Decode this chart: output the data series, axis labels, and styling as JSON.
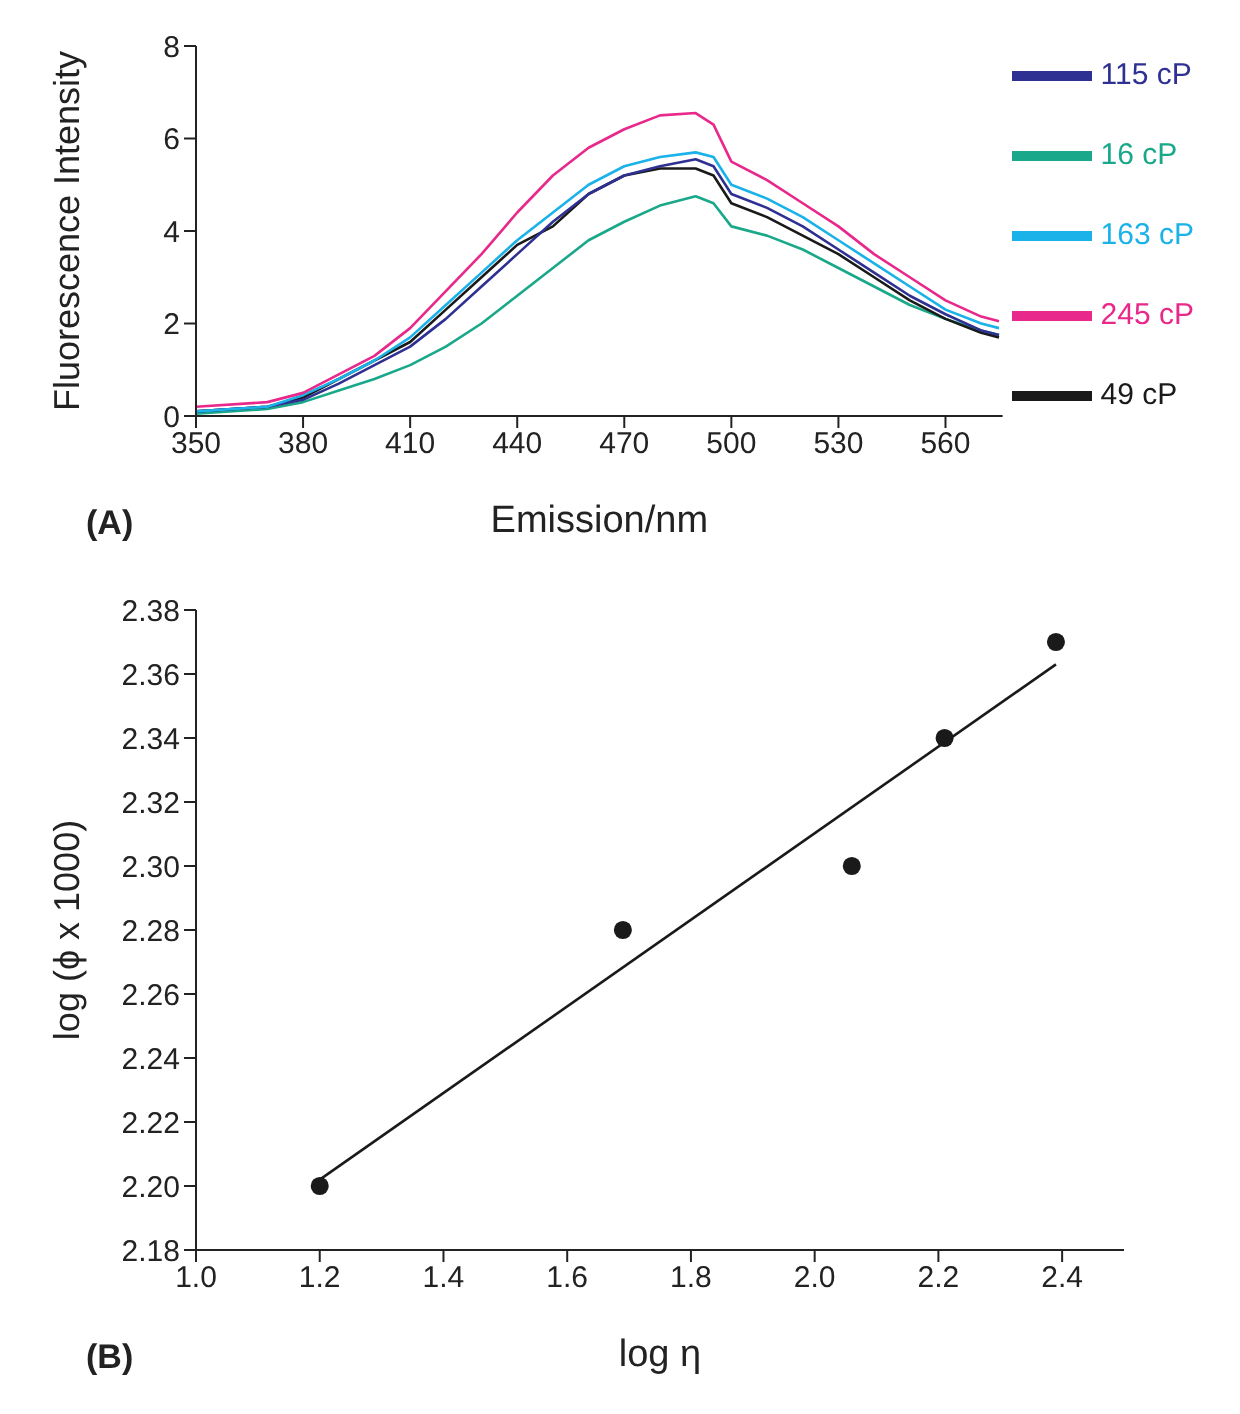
{
  "chart_data": [
    {
      "type": "line",
      "xlabel": "Emission/nm",
      "ylabel": "Fluorescence Intensity",
      "annotations": [
        "(A)"
      ],
      "x": [
        350,
        370,
        380,
        390,
        400,
        410,
        420,
        430,
        440,
        450,
        460,
        470,
        480,
        490,
        495,
        500,
        510,
        520,
        530,
        540,
        550,
        560,
        570,
        575
      ],
      "xlim": [
        350,
        576
      ],
      "xticks": [
        350,
        380,
        410,
        440,
        470,
        500,
        530,
        560
      ],
      "ylim": [
        0,
        8
      ],
      "yticks": [
        0,
        2,
        4,
        6,
        8
      ],
      "grid": false,
      "legend": "right",
      "marker": "none",
      "line_style": "solid",
      "series": [
        {
          "name": "16 cP",
          "color": "#1aa88a",
          "values": [
            0.05,
            0.15,
            0.3,
            0.55,
            0.8,
            1.1,
            1.5,
            2.0,
            2.6,
            3.2,
            3.8,
            4.2,
            4.55,
            4.75,
            4.6,
            4.1,
            3.9,
            3.6,
            3.2,
            2.8,
            2.4,
            2.1,
            1.85,
            1.75
          ]
        },
        {
          "name": "49 cP",
          "color": "#1a1a1a",
          "values": [
            0.1,
            0.2,
            0.4,
            0.8,
            1.2,
            1.6,
            2.3,
            3.0,
            3.7,
            4.1,
            4.8,
            5.2,
            5.35,
            5.35,
            5.2,
            4.6,
            4.3,
            3.9,
            3.5,
            3.0,
            2.5,
            2.1,
            1.8,
            1.7
          ]
        },
        {
          "name": "115 cP",
          "color": "#2e3192",
          "values": [
            0.1,
            0.2,
            0.35,
            0.7,
            1.1,
            1.5,
            2.1,
            2.8,
            3.5,
            4.2,
            4.8,
            5.2,
            5.4,
            5.55,
            5.4,
            4.8,
            4.5,
            4.1,
            3.6,
            3.1,
            2.6,
            2.2,
            1.85,
            1.75
          ]
        },
        {
          "name": "163 cP",
          "color": "#1ab2e8",
          "values": [
            0.1,
            0.2,
            0.45,
            0.8,
            1.2,
            1.7,
            2.4,
            3.1,
            3.8,
            4.4,
            5.0,
            5.4,
            5.6,
            5.7,
            5.6,
            5.0,
            4.7,
            4.3,
            3.8,
            3.3,
            2.8,
            2.3,
            2.0,
            1.9
          ]
        },
        {
          "name": "245 cP",
          "color": "#e8288a",
          "values": [
            0.2,
            0.3,
            0.5,
            0.9,
            1.3,
            1.9,
            2.7,
            3.5,
            4.4,
            5.2,
            5.8,
            6.2,
            6.5,
            6.55,
            6.3,
            5.5,
            5.1,
            4.6,
            4.1,
            3.5,
            3.0,
            2.5,
            2.15,
            2.05
          ]
        }
      ]
    },
    {
      "type": "scatter",
      "xlabel": "log η",
      "ylabel": "log (ϕ x 1000)",
      "annotations": [
        "(B)"
      ],
      "xlim": [
        1.0,
        2.5
      ],
      "xticks": [
        {
          "value": 1.0,
          "label": "1.0"
        },
        1.2,
        1.4,
        1.6,
        1.8,
        {
          "value": 2.0,
          "label": "2.0"
        },
        2.2,
        2.4
      ],
      "ylim": [
        2.18,
        2.38
      ],
      "yticks": [
        2.18,
        {
          "value": 2.2,
          "label": "2.20"
        },
        2.22,
        2.24,
        2.26,
        2.28,
        {
          "value": 2.3,
          "label": "2.30"
        },
        2.32,
        2.34,
        2.36,
        2.38
      ],
      "grid": false,
      "legend": false,
      "marker": "circle",
      "series": [
        {
          "color": "#1a1a1a",
          "x": [
            1.2,
            1.69,
            2.06,
            2.21,
            2.39
          ],
          "values": [
            2.2,
            2.28,
            2.3,
            2.34,
            2.37
          ]
        },
        {
          "type": "line",
          "color": "#1a1a1a",
          "x": [
            1.2,
            2.39
          ],
          "values": [
            2.202,
            2.363
          ],
          "marker": "none",
          "line_style": "solid"
        }
      ]
    }
  ]
}
